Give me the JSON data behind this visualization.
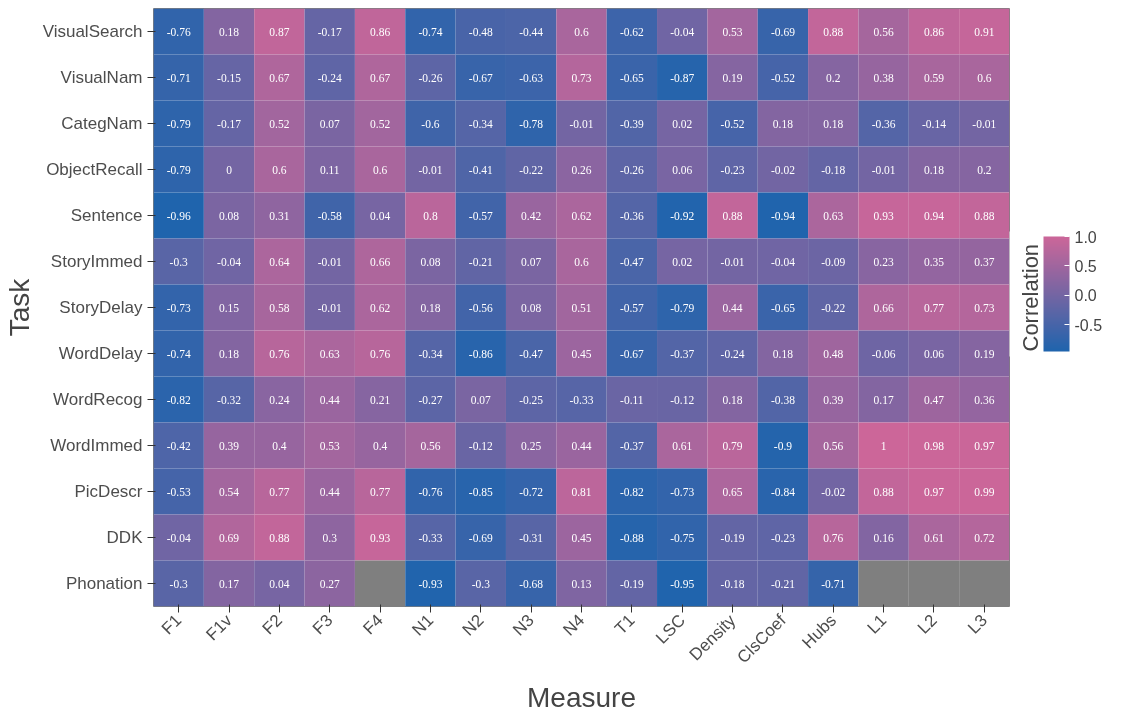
{
  "chart_data": {
    "type": "heatmap",
    "xlabel": "Measure",
    "ylabel": "Task",
    "clabel": "Correlation",
    "categories": [
      "F1",
      "F1v",
      "F2",
      "F3",
      "F4",
      "N1",
      "N2",
      "N3",
      "N4",
      "T1",
      "LSC",
      "Density",
      "ClsCoef",
      "Hubs",
      "L1",
      "L2",
      "L3"
    ],
    "y_categories": [
      "VisualSearch",
      "VisualNam",
      "CategNam",
      "ObjectRecall",
      "Sentence",
      "StoryImmed",
      "StoryDelay",
      "WordDelay",
      "WordRecog",
      "WordImmed",
      "PicDescr",
      "DDK",
      "Phonation"
    ],
    "cells": [
      [
        -0.76,
        0.18,
        0.87,
        -0.17,
        0.86,
        -0.74,
        -0.48,
        -0.44,
        0.6,
        -0.62,
        -0.04,
        0.53,
        -0.69,
        0.88,
        0.56,
        0.86,
        0.91
      ],
      [
        -0.71,
        -0.15,
        0.67,
        -0.24,
        0.67,
        -0.26,
        -0.67,
        -0.63,
        0.73,
        -0.65,
        -0.87,
        0.19,
        -0.52,
        0.2,
        0.38,
        0.59,
        0.6
      ],
      [
        -0.79,
        -0.17,
        0.52,
        0.07,
        0.52,
        -0.6,
        -0.34,
        -0.78,
        -0.01,
        -0.39,
        0.02,
        -0.52,
        0.18,
        0.18,
        -0.36,
        -0.14,
        -0.01
      ],
      [
        -0.79,
        0,
        0.6,
        0.11,
        0.6,
        -0.01,
        -0.41,
        -0.22,
        0.26,
        -0.26,
        0.06,
        -0.23,
        -0.02,
        -0.18,
        -0.01,
        0.18,
        0.2
      ],
      [
        -0.96,
        0.08,
        0.31,
        -0.58,
        0.04,
        0.8,
        -0.57,
        0.42,
        0.62,
        -0.36,
        -0.92,
        0.88,
        -0.94,
        0.63,
        0.93,
        0.94,
        0.88
      ],
      [
        -0.3,
        -0.04,
        0.64,
        -0.01,
        0.66,
        0.08,
        -0.21,
        0.07,
        0.6,
        -0.47,
        0.02,
        -0.01,
        -0.04,
        -0.09,
        0.23,
        0.35,
        0.37
      ],
      [
        -0.73,
        0.15,
        0.58,
        -0.01,
        0.62,
        0.18,
        -0.56,
        0.08,
        0.51,
        -0.57,
        -0.79,
        0.44,
        -0.65,
        -0.22,
        0.66,
        0.77,
        0.73
      ],
      [
        -0.74,
        0.18,
        0.76,
        0.63,
        0.76,
        -0.34,
        -0.86,
        -0.47,
        0.45,
        -0.67,
        -0.37,
        -0.24,
        0.18,
        0.48,
        -0.06,
        0.06,
        0.19
      ],
      [
        -0.82,
        -0.32,
        0.24,
        0.44,
        0.21,
        -0.27,
        0.07,
        -0.25,
        -0.33,
        -0.11,
        -0.12,
        0.18,
        -0.38,
        0.39,
        0.17,
        0.47,
        0.36
      ],
      [
        -0.42,
        0.39,
        0.4,
        0.53,
        0.4,
        0.56,
        -0.12,
        0.25,
        0.44,
        -0.37,
        0.61,
        0.79,
        -0.9,
        0.56,
        1,
        0.98,
        0.97
      ],
      [
        -0.53,
        0.54,
        0.77,
        0.44,
        0.77,
        -0.76,
        -0.85,
        -0.72,
        0.81,
        -0.82,
        -0.73,
        0.65,
        -0.84,
        -0.02,
        0.88,
        0.97,
        0.99
      ],
      [
        -0.04,
        0.69,
        0.88,
        0.3,
        0.93,
        -0.33,
        -0.69,
        -0.31,
        0.45,
        -0.88,
        -0.75,
        -0.19,
        -0.23,
        0.76,
        0.16,
        0.61,
        0.72
      ],
      [
        -0.3,
        0.17,
        0.04,
        0.27,
        null,
        -0.93,
        -0.3,
        -0.68,
        0.13,
        -0.19,
        -0.95,
        -0.18,
        -0.21,
        -0.71,
        null,
        null,
        null
      ]
    ],
    "clim": [
      -0.96,
      1
    ],
    "cticks": [
      {
        "value": -0.5,
        "label": "-0.5"
      },
      {
        "value": 0,
        "label": "0.0"
      },
      {
        "value": 0.5,
        "label": "0.5"
      },
      {
        "value": 1,
        "label": "1.0"
      }
    ],
    "data_labels": true
  }
}
